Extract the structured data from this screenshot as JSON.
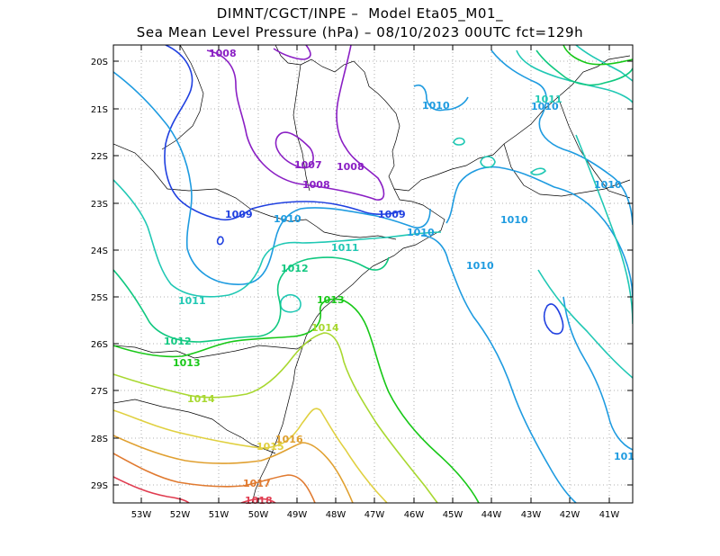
{
  "title_line1": "DIMNT/CGCT/INPE –  Model Eta05_M01_",
  "title_line2": "Sea Mean Level Pressure (hPa) – 08/10/2023 00UTC fct=129h",
  "lat_labels": [
    "20S",
    "21S",
    "22S",
    "23S",
    "24S",
    "25S",
    "26S",
    "27S",
    "28S",
    "29S"
  ],
  "lon_labels": [
    "53W",
    "52W",
    "51W",
    "50W",
    "49W",
    "48W",
    "47W",
    "46W",
    "45W",
    "44W",
    "43W",
    "42W",
    "41W"
  ],
  "colors": {
    "c1007": "#8a1fc4",
    "c1008": "#8a1fc4",
    "c1009": "#2040e0",
    "c1010": "#1e9be0",
    "c1011": "#20c8b4",
    "c1012": "#10c880",
    "c1013": "#18c818",
    "c1014": "#a8d830",
    "c1015": "#e0d040",
    "c1016": "#e0a030",
    "c1017": "#e07a30",
    "c1018": "#e03c50",
    "coast": "#000000",
    "grid": "#999999"
  },
  "contour_labels": {
    "l1008a": "1008",
    "l1007": "1007",
    "l1008b": "1008",
    "l1008c": "1008",
    "l1009a": "1009",
    "l1009b": "1009",
    "l1010a": "1010",
    "l1010b": "1010",
    "l1010c": "1010",
    "l1010d": "1010",
    "l1010e": "1010",
    "l1010f": "1010",
    "l1011a": "1011",
    "l1010g": "101",
    "l1011b": "1011",
    "l1011c": "1011",
    "l1012a": "1012",
    "l1012b": "1012",
    "l1013a": "1013",
    "l1013b": "1013",
    "l1014a": "1014",
    "l1014b": "1014",
    "l1015": "1015",
    "l1016": "1016",
    "l1017": "1017",
    "l1018": "1018"
  }
}
